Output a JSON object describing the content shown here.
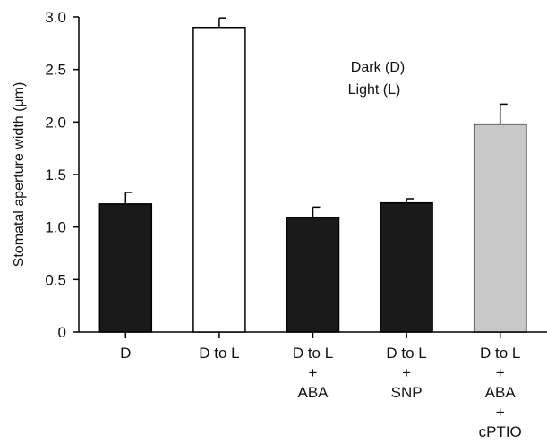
{
  "chart_data": {
    "type": "bar",
    "title": "",
    "xlabel": "",
    "ylabel": "Stomatal aperture width (μm)",
    "ylim": [
      0,
      3.0
    ],
    "yticks": [
      "0",
      "0.5",
      "1.0",
      "1.5",
      "2.0",
      "2.5",
      "3.0"
    ],
    "grid": false,
    "categories": [
      [
        "D"
      ],
      [
        "D to L"
      ],
      [
        "D to L",
        "+",
        "ABA"
      ],
      [
        "D to L",
        "+",
        "SNP"
      ],
      [
        "D to L",
        "+",
        "ABA",
        "+",
        "cPTIO"
      ]
    ],
    "values": [
      1.22,
      2.9,
      1.09,
      1.23,
      1.98
    ],
    "errors": [
      0.11,
      0.09,
      0.1,
      0.04,
      0.19
    ],
    "bar_colors": [
      "#1a1a1a",
      "#ffffff",
      "#1a1a1a",
      "#1a1a1a",
      "#c8c8c8"
    ],
    "annotations": [
      "Dark (D)",
      "Light (L)"
    ]
  }
}
